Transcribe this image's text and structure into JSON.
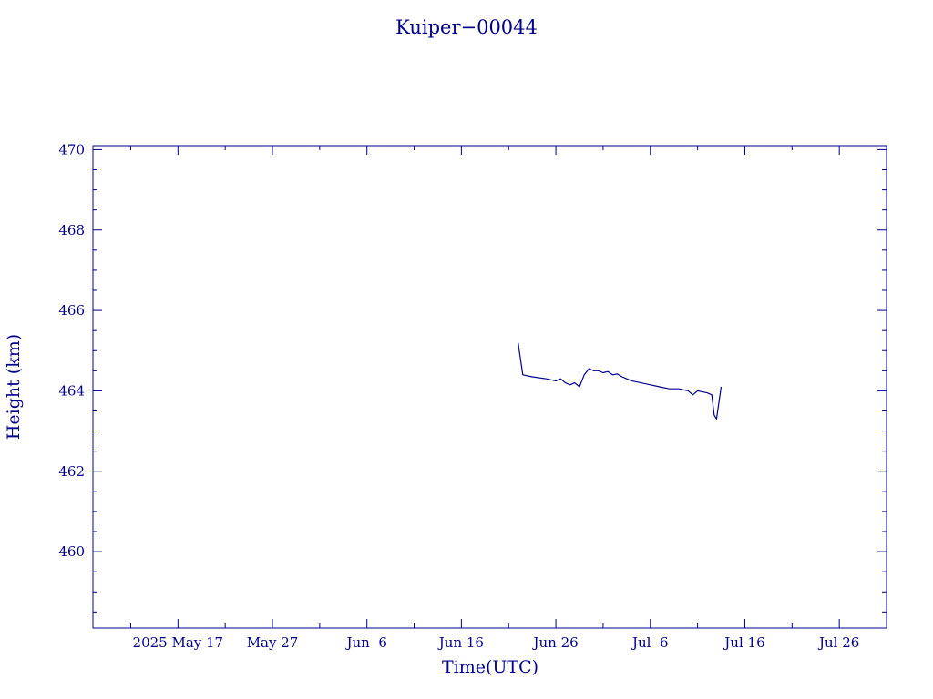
{
  "chart_data": {
    "type": "line",
    "title": "Kuiper−00044",
    "xlabel": "Time(UTC)",
    "ylabel": "Height (km)",
    "x_tick_labels": [
      "2025 May 17",
      "May 27",
      "Jun  6",
      "Jun 16",
      "Jun 26",
      "Jul  6",
      "Jul 16",
      "Jul 26"
    ],
    "x_tick_dates": [
      "2025-05-17",
      "2025-05-27",
      "2025-06-06",
      "2025-06-16",
      "2025-06-26",
      "2025-07-06",
      "2025-07-16",
      "2025-07-26"
    ],
    "xlim": [
      "2025-05-08",
      "2025-07-31"
    ],
    "y_tick_labels": [
      "460",
      "462",
      "464",
      "466",
      "468",
      "470"
    ],
    "y_tick_values": [
      460,
      462,
      464,
      466,
      468,
      470
    ],
    "ylim": [
      458.1,
      470.1
    ],
    "grid": false,
    "color": "#00008b",
    "series": [
      {
        "x": [
          "2025-06-22T00:00",
          "2025-06-22T12:00",
          "2025-06-23T12:00",
          "2025-06-25T00:00",
          "2025-06-26T00:00",
          "2025-06-26T12:00",
          "2025-06-27T00:00",
          "2025-06-27T12:00",
          "2025-06-28T00:00",
          "2025-06-28T12:00",
          "2025-06-29T00:00",
          "2025-06-29T12:00",
          "2025-06-30T00:00",
          "2025-06-30T12:00",
          "2025-07-01T00:00",
          "2025-07-01T12:00",
          "2025-07-02T00:00",
          "2025-07-02T12:00",
          "2025-07-03T00:00",
          "2025-07-03T12:00",
          "2025-07-04T00:00",
          "2025-07-05T00:00",
          "2025-07-06T00:00",
          "2025-07-07T00:00",
          "2025-07-08T00:00",
          "2025-07-09T00:00",
          "2025-07-10T00:00",
          "2025-07-10T12:00",
          "2025-07-11T00:00",
          "2025-07-12T00:00",
          "2025-07-12T12:00",
          "2025-07-12T18:00",
          "2025-07-13T00:00",
          "2025-07-13T12:00"
        ],
        "y": [
          465.2,
          464.4,
          464.35,
          464.3,
          464.25,
          464.3,
          464.2,
          464.15,
          464.2,
          464.1,
          464.4,
          464.55,
          464.5,
          464.5,
          464.45,
          464.48,
          464.4,
          464.42,
          464.35,
          464.3,
          464.25,
          464.2,
          464.15,
          464.1,
          464.05,
          464.05,
          464.0,
          463.9,
          464.0,
          463.95,
          463.9,
          463.4,
          463.3,
          464.1
        ]
      }
    ]
  }
}
